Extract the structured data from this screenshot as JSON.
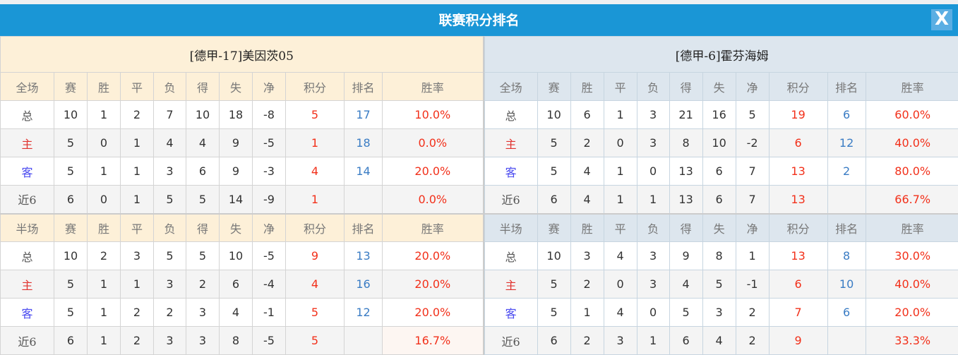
{
  "title": "联赛积分排名",
  "close_label": "X",
  "columns_full": [
    "全场",
    "赛",
    "胜",
    "平",
    "负",
    "得",
    "失",
    "净",
    "积分",
    "排名",
    "胜率"
  ],
  "columns_half": [
    "半场",
    "赛",
    "胜",
    "平",
    "负",
    "得",
    "失",
    "净",
    "积分",
    "排名",
    "胜率"
  ],
  "colors": {
    "header": "#1a96d6",
    "home": "#e0322e",
    "away": "#4a4af0",
    "points": "#f2301a",
    "rank": "#3a7cc4"
  },
  "teams": [
    {
      "title": "[德甲-17]美因茨05",
      "full": [
        [
          "总",
          "10",
          "1",
          "2",
          "7",
          "10",
          "18",
          "-8",
          "5",
          "17",
          "10.0%"
        ],
        [
          "主",
          "5",
          "0",
          "1",
          "4",
          "4",
          "9",
          "-5",
          "1",
          "18",
          "0.0%"
        ],
        [
          "客",
          "5",
          "1",
          "1",
          "3",
          "6",
          "9",
          "-3",
          "4",
          "14",
          "20.0%"
        ],
        [
          "近6",
          "6",
          "0",
          "1",
          "5",
          "5",
          "14",
          "-9",
          "1",
          "",
          "0.0%"
        ]
      ],
      "half": [
        [
          "总",
          "10",
          "2",
          "3",
          "5",
          "5",
          "10",
          "-5",
          "9",
          "13",
          "20.0%"
        ],
        [
          "主",
          "5",
          "1",
          "1",
          "3",
          "2",
          "6",
          "-4",
          "4",
          "16",
          "20.0%"
        ],
        [
          "客",
          "5",
          "1",
          "2",
          "2",
          "3",
          "4",
          "-1",
          "5",
          "12",
          "20.0%"
        ],
        [
          "近6",
          "6",
          "1",
          "2",
          "3",
          "3",
          "8",
          "-5",
          "5",
          "",
          "16.7%"
        ]
      ]
    },
    {
      "title": "[德甲-6]霍芬海姆",
      "full": [
        [
          "总",
          "10",
          "6",
          "1",
          "3",
          "21",
          "16",
          "5",
          "19",
          "6",
          "60.0%"
        ],
        [
          "主",
          "5",
          "2",
          "0",
          "3",
          "8",
          "10",
          "-2",
          "6",
          "12",
          "40.0%"
        ],
        [
          "客",
          "5",
          "4",
          "1",
          "0",
          "13",
          "6",
          "7",
          "13",
          "2",
          "80.0%"
        ],
        [
          "近6",
          "6",
          "4",
          "1",
          "1",
          "13",
          "6",
          "7",
          "13",
          "",
          "66.7%"
        ]
      ],
      "half": [
        [
          "总",
          "10",
          "3",
          "4",
          "3",
          "9",
          "8",
          "1",
          "13",
          "8",
          "30.0%"
        ],
        [
          "主",
          "5",
          "2",
          "0",
          "3",
          "4",
          "5",
          "-1",
          "6",
          "10",
          "40.0%"
        ],
        [
          "客",
          "5",
          "1",
          "4",
          "0",
          "5",
          "3",
          "2",
          "7",
          "6",
          "20.0%"
        ],
        [
          "近6",
          "6",
          "2",
          "3",
          "1",
          "6",
          "4",
          "2",
          "9",
          "",
          "33.3%"
        ]
      ]
    }
  ]
}
